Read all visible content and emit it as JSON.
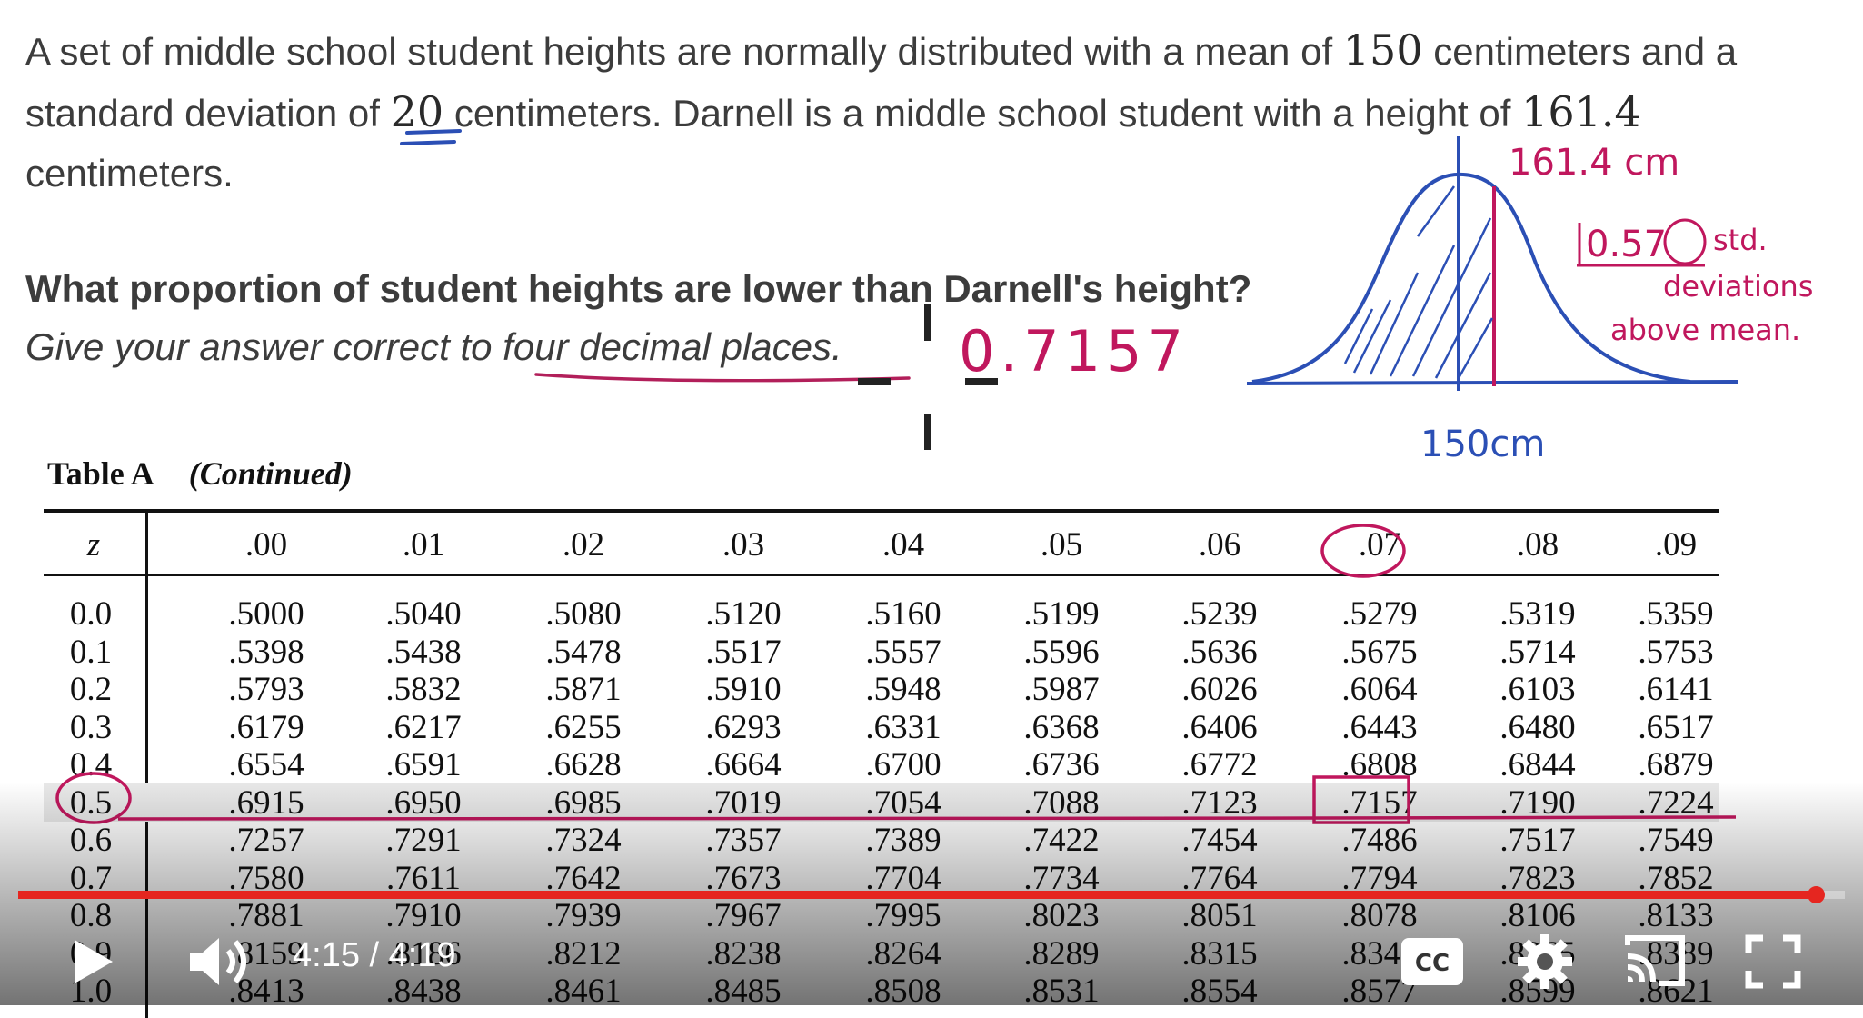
{
  "problem": {
    "p1": "A set of middle school student heights are normally distributed with a mean of ",
    "mean": "150",
    "p2": " centimeters and a standard deviation of ",
    "sd": "20",
    "p3": " centimeters. Darnell is a middle school student with a height of ",
    "height": "161.4",
    "p4": " centimeters."
  },
  "question": {
    "prompt": "What proportion of student heights are lower than Darnell's height?",
    "instruction": "Give your answer correct to four decimal places."
  },
  "annotations": {
    "answer": "0.7157",
    "height_label": "161.4 cm",
    "zscore": "0.57",
    "zscore_note_1": "std.",
    "zscore_note_2": "deviations",
    "zscore_note_3": "above mean.",
    "mean_label": "150cm"
  },
  "table": {
    "title": "Table A",
    "subtitle": "(Continued)",
    "z_header": "z",
    "columns": [
      ".00",
      ".01",
      ".02",
      ".03",
      ".04",
      ".05",
      ".06",
      ".07",
      ".08",
      ".09"
    ],
    "rows": [
      {
        "z": "0.0",
        "values": [
          ".5000",
          ".5040",
          ".5080",
          ".5120",
          ".5160",
          ".5199",
          ".5239",
          ".5279",
          ".5319",
          ".5359"
        ]
      },
      {
        "z": "0.1",
        "values": [
          ".5398",
          ".5438",
          ".5478",
          ".5517",
          ".5557",
          ".5596",
          ".5636",
          ".5675",
          ".5714",
          ".5753"
        ]
      },
      {
        "z": "0.2",
        "values": [
          ".5793",
          ".5832",
          ".5871",
          ".5910",
          ".5948",
          ".5987",
          ".6026",
          ".6064",
          ".6103",
          ".6141"
        ]
      },
      {
        "z": "0.3",
        "values": [
          ".6179",
          ".6217",
          ".6255",
          ".6293",
          ".6331",
          ".6368",
          ".6406",
          ".6443",
          ".6480",
          ".6517"
        ]
      },
      {
        "z": "0.4",
        "values": [
          ".6554",
          ".6591",
          ".6628",
          ".6664",
          ".6700",
          ".6736",
          ".6772",
          ".6808",
          ".6844",
          ".6879"
        ]
      },
      {
        "z": "0.5",
        "values": [
          ".6915",
          ".6950",
          ".6985",
          ".7019",
          ".7054",
          ".7088",
          ".7123",
          ".7157",
          ".7190",
          ".7224"
        ]
      },
      {
        "z": "0.6",
        "values": [
          ".7257",
          ".7291",
          ".7324",
          ".7357",
          ".7389",
          ".7422",
          ".7454",
          ".7486",
          ".7517",
          ".7549"
        ]
      },
      {
        "z": "0.7",
        "values": [
          ".7580",
          ".7611",
          ".7642",
          ".7673",
          ".7704",
          ".7734",
          ".7764",
          ".7794",
          ".7823",
          ".7852"
        ]
      },
      {
        "z": "0.8",
        "values": [
          ".7881",
          ".7910",
          ".7939",
          ".7967",
          ".7995",
          ".8023",
          ".8051",
          ".8078",
          ".8106",
          ".8133"
        ]
      },
      {
        "z": "0.9",
        "values": [
          ".8159",
          ".8186",
          ".8212",
          ".8238",
          ".8264",
          ".8289",
          ".8315",
          ".8340",
          ".8365",
          ".8389"
        ]
      },
      {
        "z": "1.0",
        "values": [
          ".8413",
          ".8438",
          ".8461",
          ".8485",
          ".8508",
          ".8531",
          ".8554",
          ".8577",
          ".8599",
          ".8621"
        ]
      }
    ]
  },
  "player": {
    "time": "4:15 / 4:19",
    "progress": 0.984,
    "accent": "#e52620",
    "icons": [
      "play-icon",
      "volume-icon",
      "cc-icon",
      "settings-icon",
      "cast-icon",
      "fullscreen-icon"
    ]
  }
}
